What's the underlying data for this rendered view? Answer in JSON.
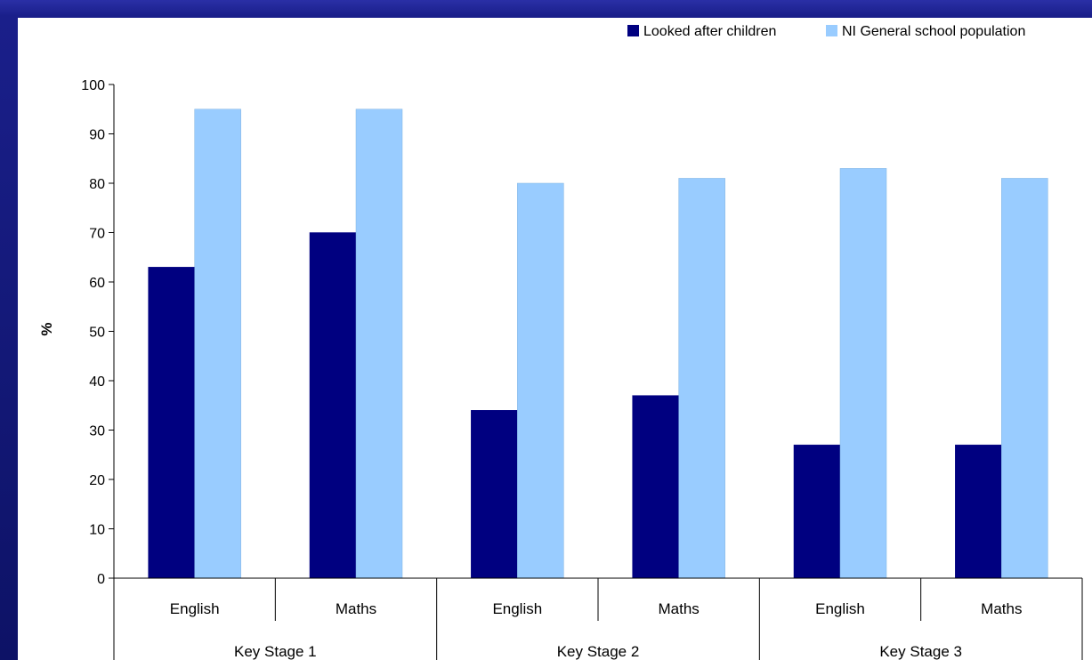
{
  "colors": {
    "frame": "#1a1f8a",
    "series_dark": "#000080",
    "series_light": "#99ccff"
  },
  "chart_data": {
    "type": "bar",
    "title": "",
    "xlabel": "",
    "ylabel": "%",
    "ylim": [
      0,
      100
    ],
    "yticks": [
      0,
      10,
      20,
      30,
      40,
      50,
      60,
      70,
      80,
      90,
      100
    ],
    "grid": false,
    "legend_position": "top-right",
    "categories": [
      "English",
      "Maths",
      "English",
      "Maths",
      "English",
      "Maths"
    ],
    "groups": [
      {
        "label": "Key Stage 1",
        "span": 2
      },
      {
        "label": "Key Stage 2",
        "span": 2
      },
      {
        "label": "Key Stage 3",
        "span": 2
      }
    ],
    "series": [
      {
        "name": "Looked after children",
        "color": "#000080",
        "values": [
          63,
          70,
          34,
          37,
          27,
          27
        ]
      },
      {
        "name": "NI General school population",
        "color": "#99ccff",
        "values": [
          95,
          95,
          80,
          81,
          83,
          81
        ]
      }
    ]
  }
}
